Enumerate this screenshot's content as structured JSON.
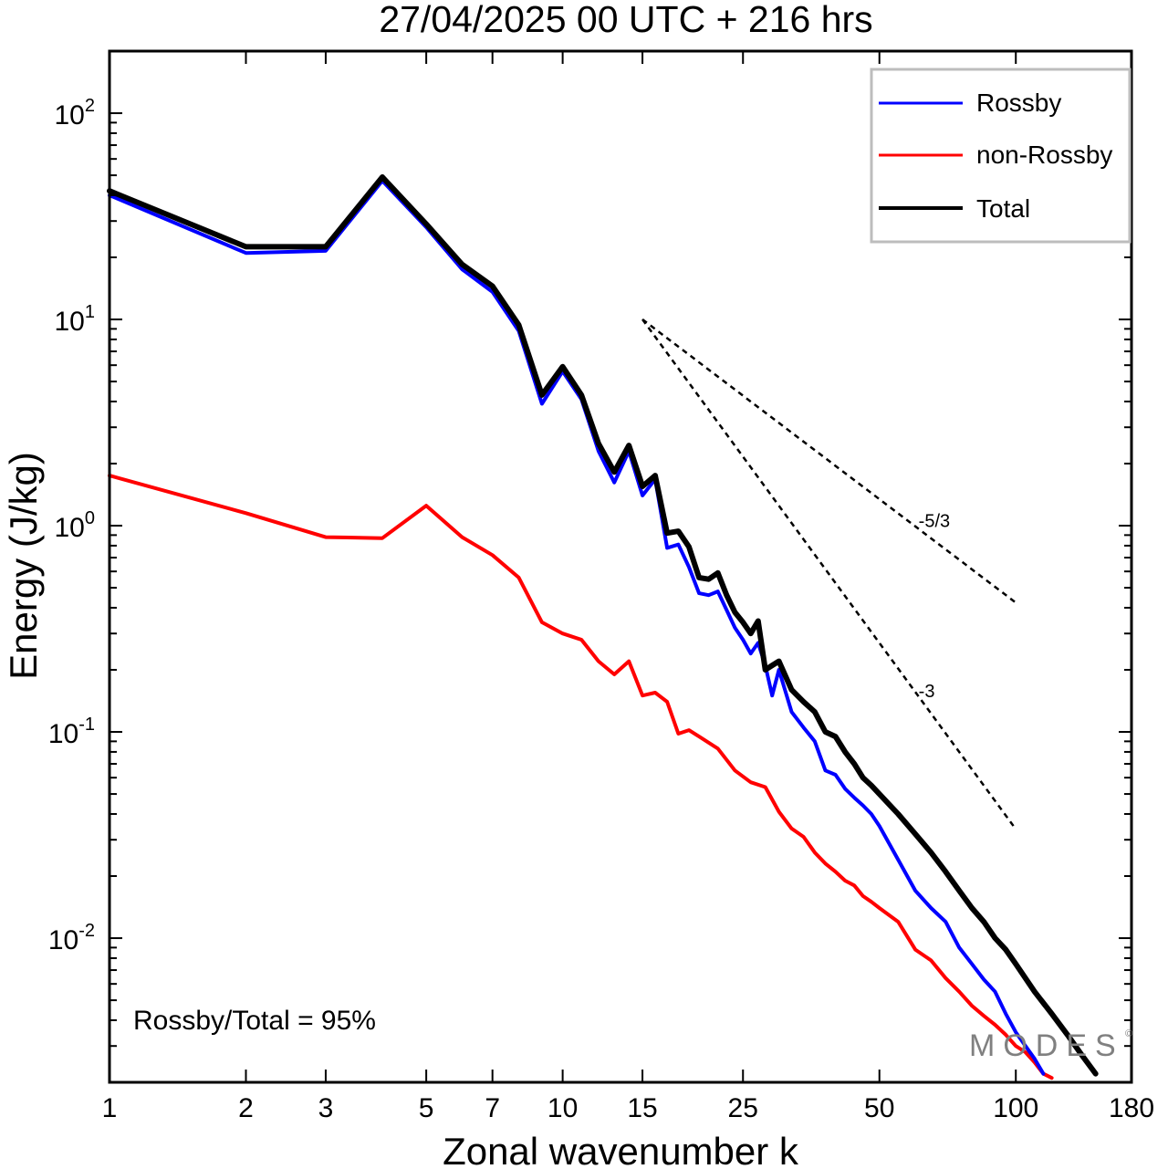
{
  "chart_data": {
    "type": "line",
    "title": "27/04/2025  00 UTC  + 216 hrs",
    "xlabel": "Zonal wavenumber k",
    "ylabel": "Energy (J/kg)",
    "x_scale": "log",
    "y_scale": "log",
    "xlim": [
      1,
      180
    ],
    "ylim": [
      0.002,
      200
    ],
    "x_ticks": [
      1,
      2,
      3,
      5,
      7,
      10,
      15,
      25,
      50,
      100,
      180
    ],
    "x_tick_labels": [
      "1",
      "2",
      "3",
      "5",
      "7",
      "10",
      "15",
      "25",
      "50",
      "100",
      "180"
    ],
    "y_ticks": [
      {
        "value": 100,
        "base": "10",
        "exp": "2"
      },
      {
        "value": 10,
        "base": "10",
        "exp": "1"
      },
      {
        "value": 1,
        "base": "10",
        "exp": "0"
      },
      {
        "value": 0.1,
        "base": "10",
        "exp": "-1"
      },
      {
        "value": 0.01,
        "base": "10",
        "exp": "-2"
      }
    ],
    "grid": false,
    "legend_position": "top-right",
    "series": [
      {
        "name": "Rossby",
        "color": "#0000ff",
        "x": [
          1,
          2,
          3,
          4,
          5,
          6,
          7,
          8,
          9,
          10,
          11,
          12,
          13,
          14,
          15,
          16,
          17,
          18,
          19,
          20,
          21,
          22,
          23,
          24,
          25,
          26,
          27,
          28,
          29,
          30,
          32,
          34,
          36,
          38,
          40,
          42,
          44,
          46,
          48,
          50,
          55,
          60,
          65,
          70,
          75,
          80,
          85,
          90,
          95,
          100,
          105,
          110,
          115
        ],
        "y": [
          40,
          21,
          21.5,
          47,
          28,
          17.5,
          13.6,
          8.8,
          3.9,
          5.6,
          4.1,
          2.3,
          1.62,
          2.3,
          1.4,
          1.68,
          0.78,
          0.81,
          0.63,
          0.47,
          0.46,
          0.48,
          0.39,
          0.32,
          0.28,
          0.24,
          0.27,
          0.21,
          0.15,
          0.2,
          0.125,
          0.105,
          0.09,
          0.065,
          0.062,
          0.053,
          0.048,
          0.044,
          0.04,
          0.035,
          0.024,
          0.017,
          0.014,
          0.012,
          0.009,
          0.0075,
          0.0063,
          0.0055,
          0.0043,
          0.0035,
          0.003,
          0.0026,
          0.0022
        ]
      },
      {
        "name": "non-Rossby",
        "color": "#ff0000",
        "x": [
          1,
          2,
          3,
          4,
          5,
          6,
          7,
          8,
          9,
          10,
          11,
          12,
          13,
          14,
          15,
          16,
          17,
          18,
          19,
          20,
          22,
          24,
          26,
          28,
          30,
          32,
          34,
          36,
          38,
          40,
          42,
          44,
          46,
          48,
          50,
          55,
          60,
          65,
          70,
          75,
          80,
          85,
          90,
          95,
          100,
          105,
          110,
          115,
          120
        ],
        "y": [
          1.75,
          1.15,
          0.88,
          0.87,
          1.25,
          0.88,
          0.72,
          0.56,
          0.34,
          0.3,
          0.28,
          0.22,
          0.19,
          0.22,
          0.15,
          0.155,
          0.14,
          0.098,
          0.102,
          0.095,
          0.083,
          0.065,
          0.057,
          0.054,
          0.041,
          0.034,
          0.031,
          0.026,
          0.023,
          0.021,
          0.019,
          0.018,
          0.016,
          0.015,
          0.014,
          0.012,
          0.0088,
          0.0078,
          0.0064,
          0.0055,
          0.0047,
          0.0042,
          0.0038,
          0.0034,
          0.003,
          0.0028,
          0.0025,
          0.0022,
          0.0021
        ]
      },
      {
        "name": "Total",
        "color": "#000000",
        "x": [
          1,
          2,
          3,
          4,
          5,
          6,
          7,
          8,
          9,
          10,
          11,
          12,
          13,
          14,
          15,
          16,
          17,
          18,
          19,
          20,
          21,
          22,
          23,
          24,
          25,
          26,
          27,
          28,
          29,
          30,
          32,
          34,
          36,
          38,
          40,
          42,
          44,
          46,
          48,
          50,
          55,
          60,
          65,
          70,
          75,
          80,
          85,
          90,
          95,
          100,
          110,
          120,
          130,
          140,
          150
        ],
        "y": [
          42,
          22.5,
          22.5,
          49,
          29,
          18.5,
          14.5,
          9.4,
          4.3,
          5.9,
          4.3,
          2.5,
          1.82,
          2.45,
          1.55,
          1.75,
          0.92,
          0.94,
          0.79,
          0.56,
          0.55,
          0.59,
          0.46,
          0.38,
          0.34,
          0.3,
          0.345,
          0.2,
          0.21,
          0.22,
          0.16,
          0.14,
          0.125,
          0.1,
          0.095,
          0.08,
          0.07,
          0.06,
          0.055,
          0.05,
          0.04,
          0.032,
          0.026,
          0.021,
          0.017,
          0.014,
          0.012,
          0.01,
          0.0088,
          0.0075,
          0.0055,
          0.0043,
          0.0034,
          0.0027,
          0.0022
        ]
      }
    ],
    "reference_lines": [
      {
        "label": "-5/3",
        "slope": -1.6667,
        "x_start": 15,
        "y_start": 10,
        "x_end": 100
      },
      {
        "label": "-3",
        "slope": -3,
        "x_start": 15,
        "y_start": 10,
        "x_end": 100
      }
    ],
    "annotation": "Rossby/Total = 95%",
    "watermark": "MODES"
  }
}
